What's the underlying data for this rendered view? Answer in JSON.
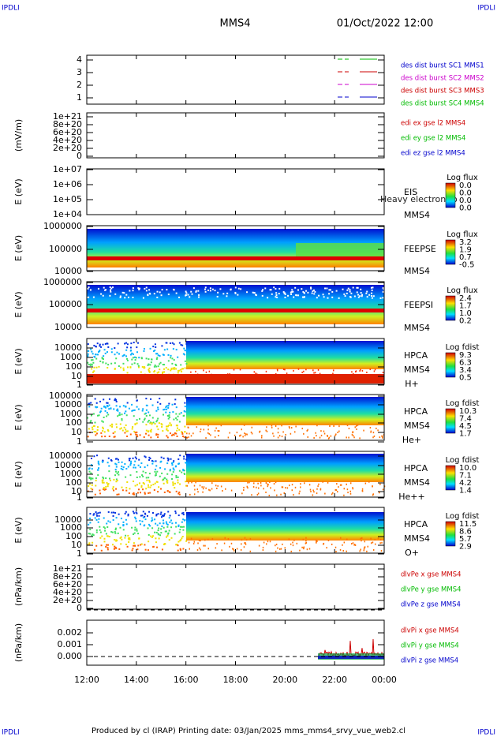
{
  "corner_left": "IPDLI",
  "corner_right": "IPDLI",
  "corner_bottom_left": "IPDLI",
  "corner_bottom_right": "IPDLI",
  "title": "MMS4",
  "date": "01/Oct/2022 12:00",
  "panels": [
    {
      "ylabel": null,
      "yticks": [
        "4",
        "3",
        "2",
        "1"
      ],
      "legend": [
        {
          "text": "des dist burst SC1 MMS1",
          "color": "#0000cc"
        },
        {
          "text": "des dist burst SC2 MMS2",
          "color": "#cc00cc"
        },
        {
          "text": "des dist burst SC3 MMS3",
          "color": "#cc0000"
        },
        {
          "text": "des dist burst SC4 MMS4",
          "color": "#00bb00"
        }
      ]
    },
    {
      "ylabel": "(mV/m)",
      "yticks": [
        "1e+21",
        "8e+20",
        "6e+20",
        "4e+20",
        "2e+20",
        "0"
      ],
      "legend": [
        {
          "text": "edi ex gse l2 MMS4",
          "color": "#cc0000"
        },
        {
          "text": "edi ey gse l2 MMS4",
          "color": "#00bb00"
        },
        {
          "text": "edi ez gse l2 MMS4",
          "color": "#0000cc"
        }
      ]
    },
    {
      "ylabel": "E (eV)",
      "yticks": [
        "1e+07",
        "1e+06",
        "1e+05",
        "1e+04"
      ],
      "side": [
        "EIS",
        "MMS4"
      ],
      "note": "Heavy electron to",
      "colorbar": {
        "title": "Log flux",
        "labels": [
          "0.0",
          "0.0",
          "0.0",
          "0.0"
        ]
      }
    },
    {
      "ylabel": "E (eV)",
      "yticks": [
        "1000000",
        "100000",
        "10000"
      ],
      "side": [
        "FEEPSE",
        "MMS4"
      ],
      "colorbar": {
        "title": "Log flux",
        "labels": [
          "3.2",
          "1.9",
          "0.7",
          "-0.5"
        ]
      }
    },
    {
      "ylabel": "E (eV)",
      "yticks": [
        "1000000",
        "100000",
        "10000"
      ],
      "side": [
        "FEEPSI",
        "MMS4"
      ],
      "colorbar": {
        "title": "Log flux",
        "labels": [
          "2.4",
          "1.7",
          "1.0",
          "0.2"
        ]
      }
    },
    {
      "ylabel": "E (eV)",
      "yticks": [
        "10000",
        "1000",
        "100",
        "10",
        "1"
      ],
      "side": [
        "HPCA",
        "MMS4",
        "H+"
      ],
      "colorbar": {
        "title": "Log fdist",
        "labels": [
          "9.3",
          "6.3",
          "3.4",
          "0.5"
        ]
      }
    },
    {
      "ylabel": "E (eV)",
      "yticks": [
        "100000",
        "10000",
        "1000",
        "100",
        "10",
        "1"
      ],
      "side": [
        "HPCA",
        "MMS4",
        "He+"
      ],
      "colorbar": {
        "title": "Log fdist",
        "labels": [
          "10.3",
          "7.4",
          "4.5",
          "1.7"
        ]
      }
    },
    {
      "ylabel": "E (eV)",
      "yticks": [
        "100000",
        "10000",
        "1000",
        "100",
        "10",
        "1"
      ],
      "side": [
        "HPCA",
        "MMS4",
        "He++"
      ],
      "colorbar": {
        "title": "Log fdist",
        "labels": [
          "10.0",
          "7.1",
          "4.2",
          "1.4"
        ]
      }
    },
    {
      "ylabel": "E (eV)",
      "yticks": [
        "10000",
        "1000",
        "100",
        "10",
        "1"
      ],
      "side": [
        "HPCA",
        "MMS4",
        "O+"
      ],
      "colorbar": {
        "title": "Log fdist",
        "labels": [
          "11.5",
          "8.6",
          "5.7",
          "2.9"
        ]
      }
    },
    {
      "ylabel": "(nPa/km)",
      "yticks": [
        "1e+21",
        "8e+20",
        "6e+20",
        "4e+20",
        "2e+20",
        "0"
      ],
      "legend": [
        {
          "text": "dlvPe x gse MMS4",
          "color": "#cc0000"
        },
        {
          "text": "dlvPe y gse MMS4",
          "color": "#00bb00"
        },
        {
          "text": "dlvPe z gse MMS4",
          "color": "#0000cc"
        }
      ]
    },
    {
      "ylabel": "(nPa/km)",
      "yticks": [
        "0.002",
        "0.001",
        "0.000"
      ],
      "legend": [
        {
          "text": "dlvPi x gse MMS4",
          "color": "#cc0000"
        },
        {
          "text": "dlvPi y gse MMS4",
          "color": "#00bb00"
        },
        {
          "text": "dlvPi z gse MMS4",
          "color": "#0000cc"
        }
      ]
    }
  ],
  "xticks": [
    "12:00",
    "14:00",
    "16:00",
    "18:00",
    "20:00",
    "22:00",
    "00:00"
  ],
  "footer": "Produced by cl (IRAP)   Printing date: 03/Jan/2025   mms_mms4_srvy_vue_web2.cl"
}
